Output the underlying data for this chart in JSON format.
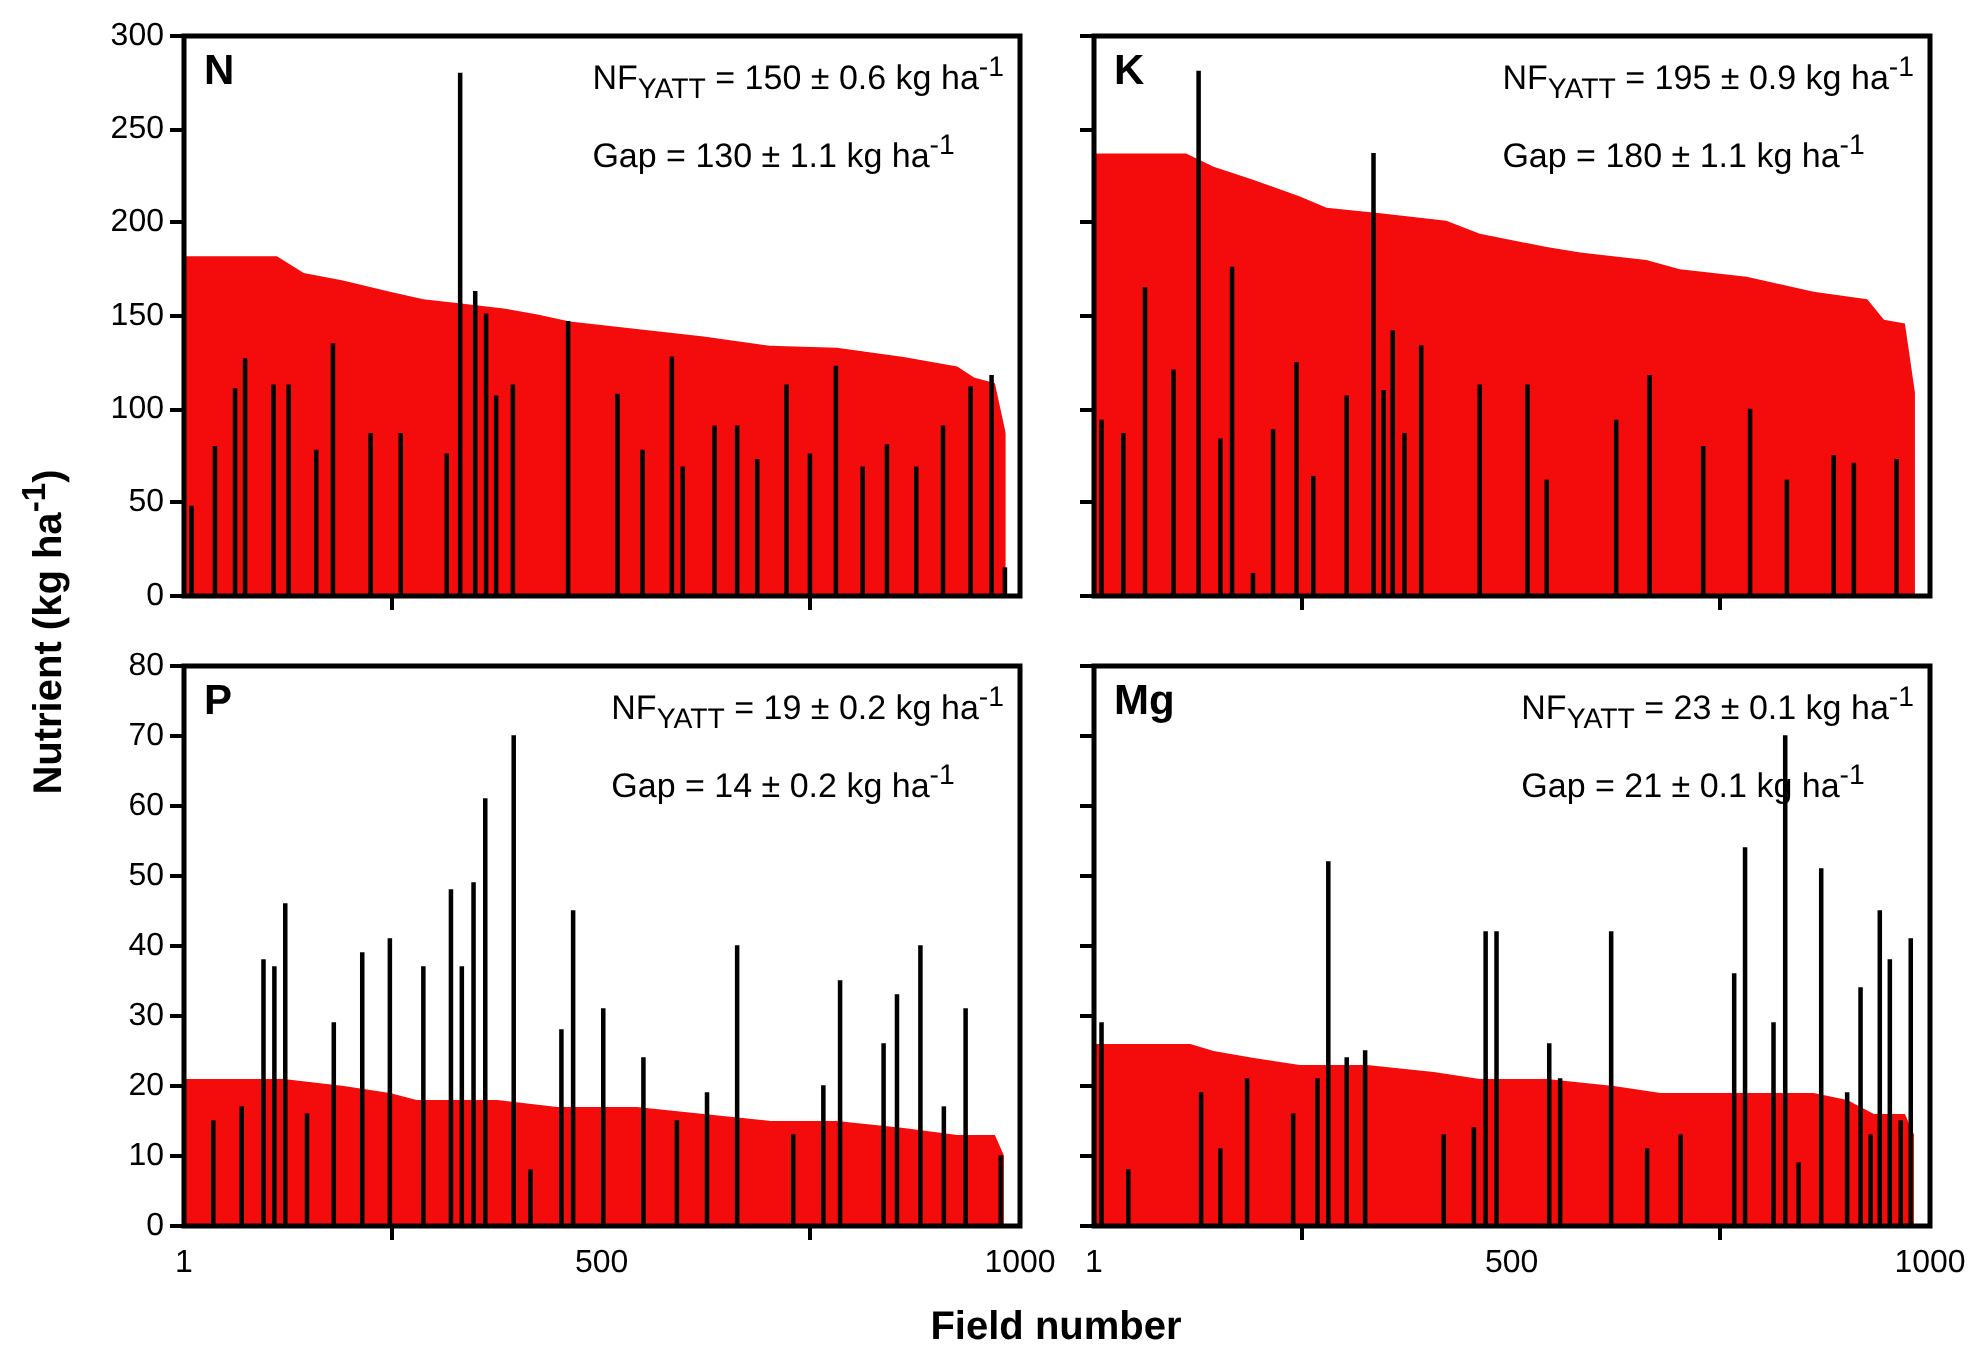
{
  "chart_data": [
    {
      "type": "bar",
      "title": "N",
      "ylabel": "Nutrient (kg ha$^{-1}$)",
      "annotations": [
        "NF$_{YATT}$ = 150 ± 0.6 kg ha$^{-1}$",
        "Gap = 130 ± 1.1 kg ha$^{-1}$"
      ],
      "xlim": [
        1,
        1000
      ],
      "xticks": [
        1,
        500,
        1000
      ],
      "ylim": [
        0,
        300
      ],
      "yticks": [
        0,
        50,
        100,
        150,
        200,
        250,
        300
      ],
      "tick_labels": "y",
      "legend": false,
      "series": [
        {
          "type": "area",
          "color": "#f40b0b",
          "x": [
            1,
            112,
            144,
            191,
            247,
            287,
            327,
            383,
            422,
            462,
            542,
            622,
            701,
            781,
            861,
            925,
            945,
            970,
            983
          ],
          "values": [
            182,
            182,
            173,
            169,
            163,
            159,
            157,
            154,
            151,
            147,
            143,
            139,
            134,
            133,
            128,
            123,
            117,
            114,
            87
          ]
        },
        {
          "color": "#000000",
          "x": [
            10,
            38,
            62,
            74,
            108,
            126,
            159,
            179,
            224,
            260,
            315,
            331,
            349,
            362,
            374,
            394,
            460,
            519,
            549,
            584,
            597,
            635,
            662,
            686,
            721,
            749,
            780,
            812,
            841,
            876,
            908,
            941,
            966,
            982
          ],
          "values": [
            48,
            80,
            111,
            127,
            113,
            113,
            78,
            135,
            87,
            87,
            76,
            280,
            163,
            151,
            107,
            113,
            147,
            108,
            78,
            128,
            69,
            91,
            91,
            73,
            113,
            76,
            123,
            69,
            81,
            69,
            91,
            112,
            118,
            15
          ]
        }
      ]
    },
    {
      "type": "bar",
      "title": "K",
      "annotations": [
        "NF$_{YATT}$ = 195 ± 0.9 kg ha$^{-1}$",
        "Gap = 180 ± 1.1 kg ha$^{-1}$"
      ],
      "xlim": [
        1,
        1000
      ],
      "xticks": [
        1,
        500,
        1000
      ],
      "ylim": [
        0,
        300
      ],
      "yticks": [
        0,
        50,
        100,
        150,
        200,
        250,
        300
      ],
      "tick_labels": false,
      "legend": false,
      "series": [
        {
          "type": "area",
          "color": "#f40b0b",
          "x": [
            1,
            111,
            144,
            191,
            247,
            279,
            343,
            422,
            462,
            542,
            582,
            661,
            701,
            781,
            861,
            925,
            945,
            970,
            982
          ],
          "values": [
            237,
            237,
            230,
            223,
            214,
            208,
            205,
            201,
            194,
            187,
            184,
            180,
            175,
            171,
            163,
            159,
            148,
            146,
            109
          ]
        },
        {
          "color": "#000000",
          "x": [
            10,
            36,
            62,
            96,
            126,
            152,
            166,
            191,
            215,
            243,
            263,
            303,
            335,
            347,
            358,
            372,
            392,
            462,
            519,
            542,
            625,
            665,
            729,
            785,
            829,
            885,
            909,
            960
          ],
          "values": [
            94,
            87,
            165,
            121,
            281,
            84,
            176,
            12,
            89,
            125,
            64,
            107,
            237,
            110,
            142,
            87,
            134,
            113,
            113,
            62,
            94,
            118,
            80,
            100,
            62,
            75,
            71,
            73
          ]
        }
      ]
    },
    {
      "type": "bar",
      "title": "P",
      "xlabel": "Field number",
      "annotations": [
        "NF$_{YATT}$ = 19 ± 0.2 kg ha$^{-1}$",
        "Gap = 14 ± 0.2 kg ha$^{-1}$"
      ],
      "xlim": [
        1,
        1000
      ],
      "xticks": [
        1,
        500,
        1000
      ],
      "ylim": [
        0,
        80
      ],
      "yticks": [
        0,
        10,
        20,
        30,
        40,
        50,
        60,
        70,
        80
      ],
      "legend": false,
      "series": [
        {
          "type": "area",
          "color": "#f40b0b",
          "x": [
            1,
            120,
            192,
            247,
            279,
            375,
            447,
            542,
            622,
            702,
            781,
            861,
            925,
            941,
            970,
            981
          ],
          "values": [
            21,
            21,
            20,
            19,
            18,
            18,
            17,
            17,
            16,
            15,
            15,
            14,
            13,
            13,
            13,
            10
          ]
        },
        {
          "color": "#000000",
          "x": [
            36,
            70,
            96,
            109,
            122,
            148,
            180,
            214,
            247,
            287,
            320,
            333,
            347,
            361,
            395,
            415,
            452,
            466,
            502,
            550,
            590,
            626,
            662,
            729,
            765,
            785,
            837,
            853,
            881,
            909,
            935,
            977
          ],
          "values": [
            15,
            17,
            38,
            37,
            46,
            16,
            29,
            39,
            41,
            37,
            48,
            37,
            49,
            61,
            70,
            8,
            28,
            45,
            31,
            24,
            15,
            19,
            40,
            13,
            20,
            35,
            26,
            33,
            40,
            17,
            31,
            10
          ]
        }
      ]
    },
    {
      "type": "bar",
      "title": "Mg",
      "annotations": [
        "NF$_{YATT}$ = 23 ± 0.1 kg ha$^{-1}$",
        "Gap = 21 ± 0.1 kg ha$^{-1}$"
      ],
      "xlim": [
        1,
        1000
      ],
      "xticks": [
        1,
        500,
        1000
      ],
      "ylim": [
        0,
        80
      ],
      "yticks": [
        0,
        10,
        20,
        30,
        40,
        50,
        60,
        70,
        80
      ],
      "tick_labels": "x",
      "legend": false,
      "series": [
        {
          "type": "area",
          "color": "#f40b0b",
          "x": [
            1,
            116,
            144,
            192,
            247,
            327,
            407,
            462,
            542,
            622,
            678,
            781,
            861,
            901,
            933,
            970,
            981
          ],
          "values": [
            26,
            26,
            25,
            24,
            23,
            23,
            22,
            21,
            21,
            20,
            19,
            19,
            19,
            18,
            16,
            16,
            13
          ]
        },
        {
          "color": "#000000",
          "x": [
            10,
            42,
            129,
            152,
            184,
            239,
            268,
            281,
            303,
            325,
            419,
            455,
            469,
            482,
            545,
            558,
            619,
            662,
            702,
            766,
            779,
            813,
            827,
            843,
            870,
            901,
            917,
            929,
            940,
            952,
            965,
            977
          ],
          "values": [
            29,
            8,
            19,
            11,
            21,
            16,
            21,
            52,
            24,
            25,
            13,
            14,
            42,
            42,
            26,
            21,
            42,
            11,
            13,
            36,
            54,
            29,
            70,
            9,
            51,
            19,
            34,
            13,
            45,
            38,
            15,
            41
          ]
        }
      ]
    }
  ]
}
